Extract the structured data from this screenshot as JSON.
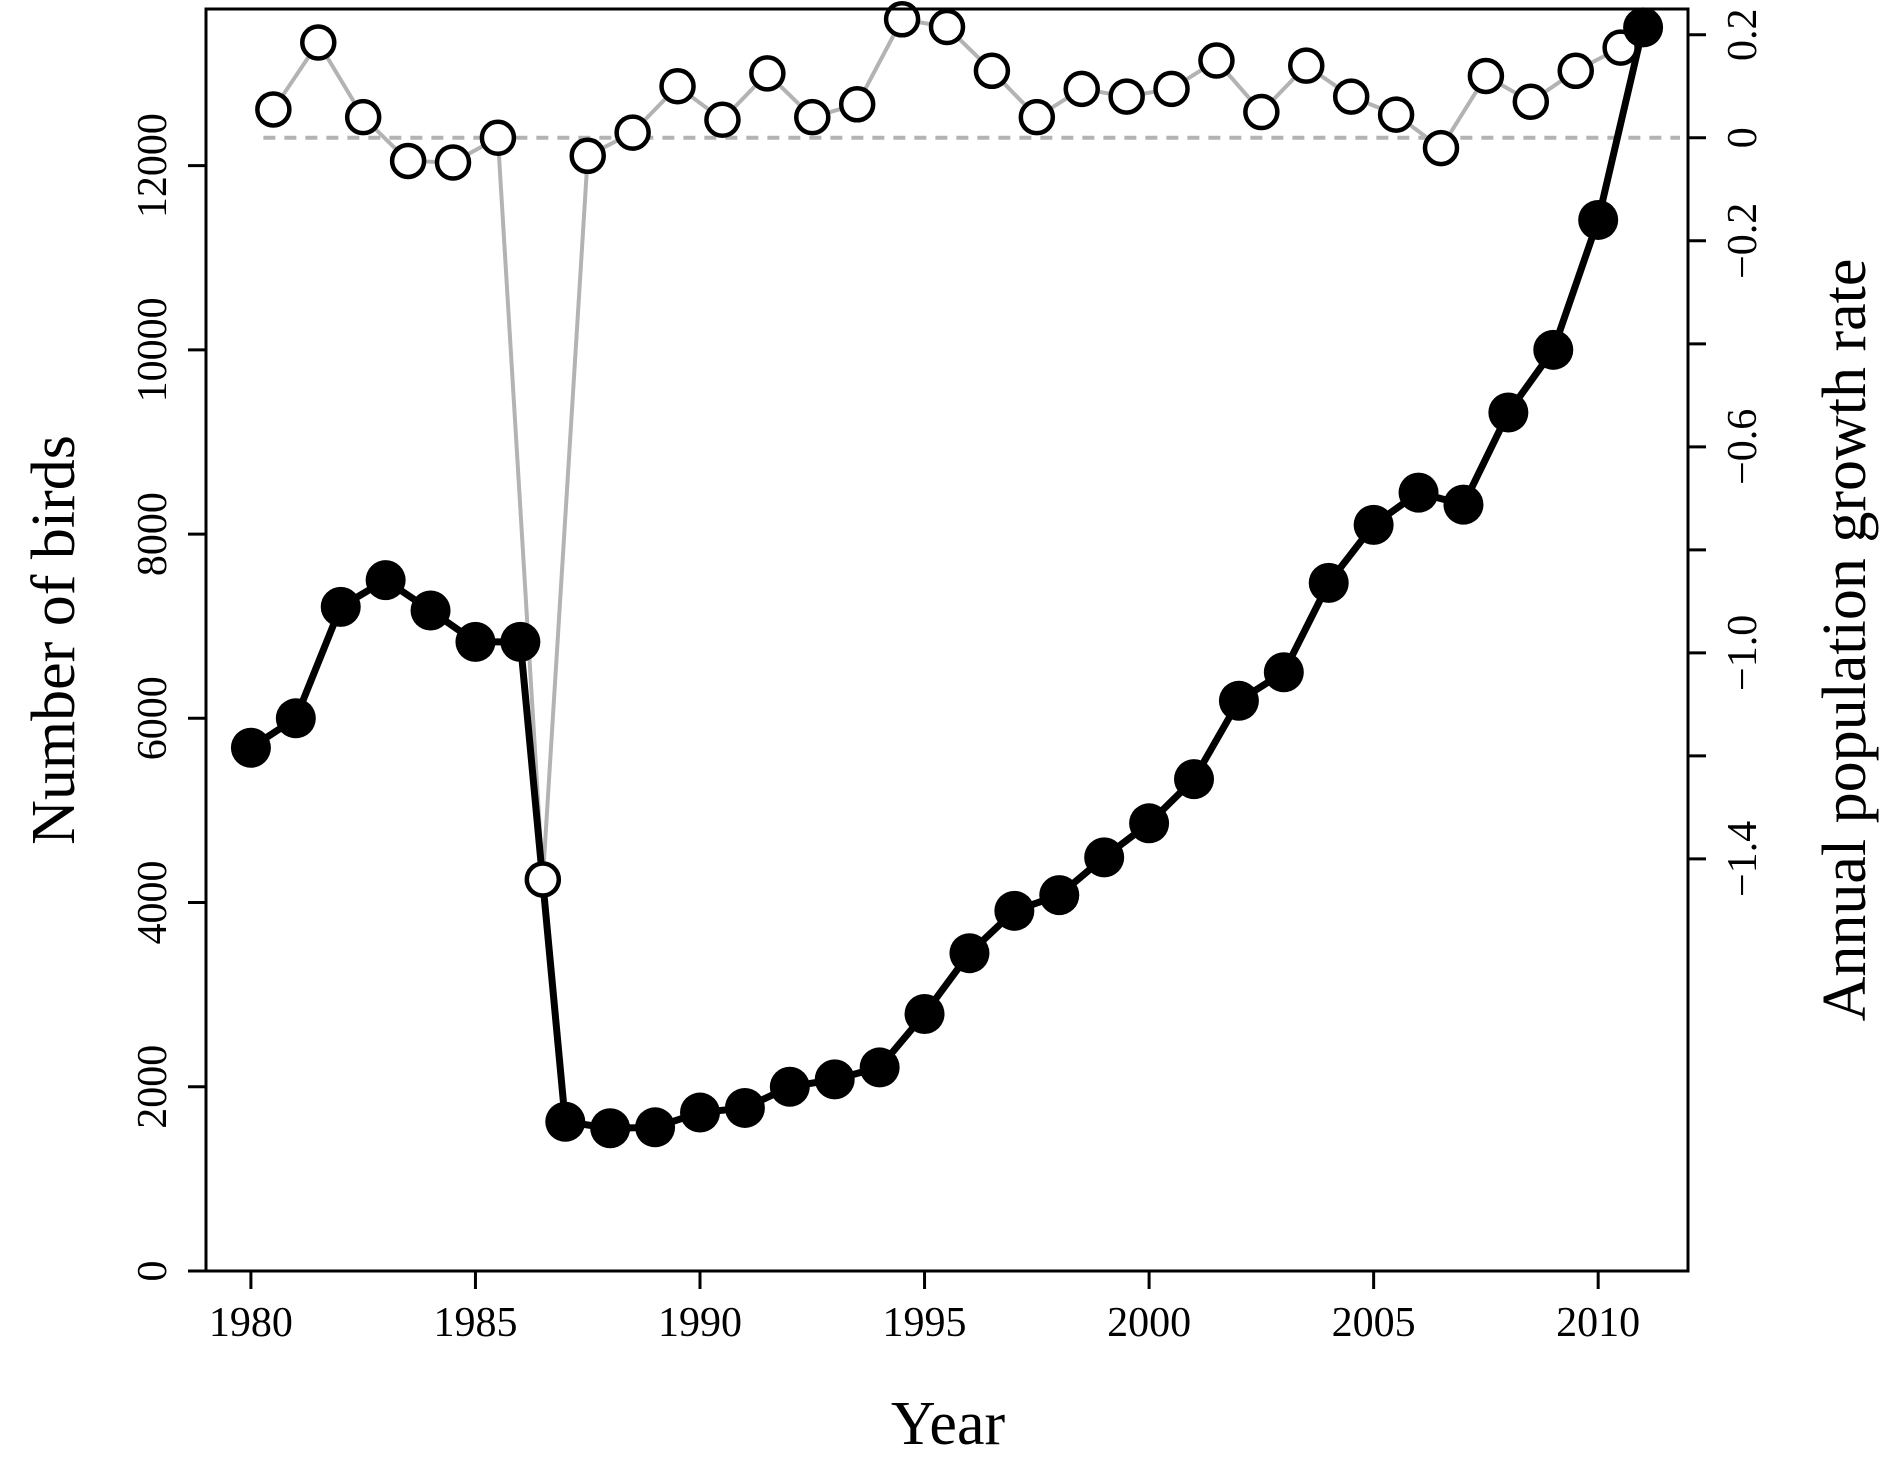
{
  "chart_data": {
    "type": "line",
    "title": "",
    "xlabel": "Year",
    "ylabel": "Number of birds",
    "ylabel_right": "Annual population growth rate",
    "xlim": [
      1979,
      2012
    ],
    "ylim": [
      0,
      13700
    ],
    "ylim_right": [
      -2.2,
      0.25
    ],
    "x_ticks": [
      1980,
      1985,
      1990,
      1995,
      2000,
      2005,
      2010
    ],
    "y_ticks": [
      0,
      2000,
      4000,
      6000,
      8000,
      10000,
      12000
    ],
    "y_ticks_right": [
      -1.4,
      -1.2,
      -1.0,
      -0.8,
      -0.6,
      -0.4,
      -0.2,
      0.0,
      0.2
    ],
    "y_tick_labels_right": [
      "−1.4",
      "",
      "−1.0",
      "",
      "−0.6",
      "",
      "−0.2",
      "0",
      "0.2"
    ],
    "reference_line_right": 0.0,
    "grid": false,
    "legend": "none",
    "colors": {
      "population": "#000000",
      "growth": "#b3b3b3",
      "reference": "#b3b3b3"
    },
    "series": [
      {
        "axis": "left",
        "style": "filled",
        "x": [
          1980,
          1981,
          1982,
          1983,
          1984,
          1985,
          1986,
          1987,
          1988,
          1989,
          1990,
          1991,
          1992,
          1993,
          1994,
          1995,
          1996,
          1997,
          1998,
          1999,
          2000,
          2001,
          2002,
          2003,
          2004,
          2005,
          2006,
          2007,
          2008,
          2009,
          2010,
          2011
        ],
        "values": [
          5680,
          6000,
          7210,
          7500,
          7170,
          6830,
          6830,
          1620,
          1550,
          1560,
          1720,
          1770,
          2000,
          2080,
          2210,
          2790,
          3450,
          3910,
          4080,
          4490,
          4860,
          5340,
          6190,
          6500,
          7470,
          8100,
          8450,
          8320,
          9320,
          10000,
          11410,
          13500
        ]
      },
      {
        "axis": "right",
        "style": "open",
        "x": [
          1980.5,
          1981.5,
          1982.5,
          1983.5,
          1984.5,
          1985.5,
          1986.5,
          1987.5,
          1988.5,
          1989.5,
          1990.5,
          1991.5,
          1992.5,
          1993.5,
          1994.5,
          1995.5,
          1996.5,
          1997.5,
          1998.5,
          1999.5,
          2000.5,
          2001.5,
          2002.5,
          2003.5,
          2004.5,
          2005.5,
          2006.5,
          2007.5,
          2008.5,
          2009.5,
          2010.5
        ],
        "values": [
          0.055,
          0.185,
          0.04,
          -0.045,
          -0.048,
          0.0,
          -1.44,
          -0.035,
          0.01,
          0.1,
          0.035,
          0.125,
          0.04,
          0.065,
          0.23,
          0.215,
          0.13,
          0.04,
          0.095,
          0.08,
          0.095,
          0.15,
          0.05,
          0.14,
          0.08,
          0.045,
          -0.02,
          0.12,
          0.07,
          0.13,
          0.175
        ]
      }
    ]
  }
}
